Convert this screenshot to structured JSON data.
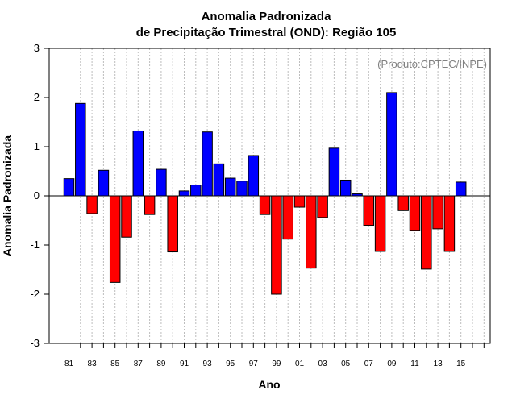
{
  "chart_data": {
    "type": "bar",
    "title_line1": "Anomalia Padronizada",
    "title_line2": "de Precipitação Trimestral (OND): Região 105",
    "credit": "(Produto:CPTEC/INPE)",
    "xlabel": "Ano",
    "ylabel": "Anomalia Padronizada",
    "ylim": [
      -3,
      3
    ],
    "yticks": [
      3,
      2,
      1,
      0,
      -1,
      -2,
      -3
    ],
    "ytick_labels": [
      "3",
      "2",
      "1",
      "0",
      "-1",
      "-2",
      "-3"
    ],
    "xtick_labels": [
      "81",
      "83",
      "85",
      "87",
      "89",
      "91",
      "93",
      "95",
      "97",
      "99",
      "01",
      "03",
      "05",
      "07",
      "09",
      "11",
      "13",
      "15"
    ],
    "years": [
      1981,
      1982,
      1983,
      1984,
      1985,
      1986,
      1987,
      1988,
      1989,
      1990,
      1991,
      1992,
      1993,
      1994,
      1995,
      1996,
      1997,
      1998,
      1999,
      2000,
      2001,
      2002,
      2003,
      2004,
      2005,
      2006,
      2007,
      2008,
      2009,
      2010,
      2011,
      2012,
      2013,
      2014,
      2015,
      2016,
      2017
    ],
    "values": [
      0.35,
      1.88,
      -0.36,
      0.52,
      -1.76,
      -0.84,
      1.32,
      -0.38,
      0.54,
      -1.14,
      0.1,
      0.22,
      1.3,
      0.65,
      0.36,
      0.3,
      0.82,
      -0.38,
      -2.0,
      -0.88,
      -0.23,
      -1.47,
      -0.44,
      0.97,
      0.32,
      0.04,
      -0.6,
      -1.13,
      2.1,
      -0.3,
      -0.7,
      -1.49,
      -0.67,
      -1.13,
      0.28,
      null,
      null
    ],
    "positive_color": "#0000ff",
    "negative_color": "#ff0000",
    "grid": "vertical dotted",
    "baseline": 0
  }
}
